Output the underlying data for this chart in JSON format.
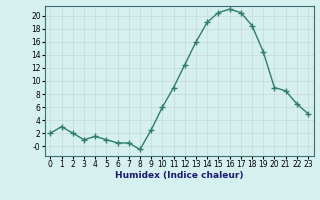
{
  "x": [
    0,
    1,
    2,
    3,
    4,
    5,
    6,
    7,
    8,
    9,
    10,
    11,
    12,
    13,
    14,
    15,
    16,
    17,
    18,
    19,
    20,
    21,
    22,
    23
  ],
  "y": [
    2,
    3,
    2,
    1,
    1.5,
    1,
    0.5,
    0.5,
    -0.5,
    2.5,
    6,
    9,
    12.5,
    16,
    19,
    20.5,
    21,
    20.5,
    18.5,
    14.5,
    9,
    8.5,
    6.5,
    5
  ],
  "line_color": "#2e7d6e",
  "marker": "+",
  "marker_size": 4,
  "bg_color": "#d6f0f0",
  "grid_color_major": "#c8dede",
  "grid_color_minor": "#dce8e8",
  "xlabel": "Humidex (Indice chaleur)",
  "ylim": [
    -1.5,
    21.5
  ],
  "xlim": [
    -0.5,
    23.5
  ],
  "yticks": [
    0,
    2,
    4,
    6,
    8,
    10,
    12,
    14,
    16,
    18,
    20
  ],
  "xticks": [
    0,
    1,
    2,
    3,
    4,
    5,
    6,
    7,
    8,
    9,
    10,
    11,
    12,
    13,
    14,
    15,
    16,
    17,
    18,
    19,
    20,
    21,
    22,
    23
  ],
  "xtick_labels": [
    "0",
    "1",
    "2",
    "3",
    "4",
    "5",
    "6",
    "7",
    "8",
    "9",
    "10",
    "11",
    "12",
    "13",
    "14",
    "15",
    "16",
    "17",
    "18",
    "19",
    "20",
    "21",
    "22",
    "23"
  ],
  "ytick_labels": [
    "0",
    "2",
    "4",
    "6",
    "8",
    "10",
    "12",
    "14",
    "16",
    "18",
    "20"
  ],
  "neg_ytick_label": "-0",
  "line_width": 1.0,
  "xlabel_fontsize": 6.5,
  "tick_fontsize": 5.5,
  "spine_color": "#3a7070"
}
